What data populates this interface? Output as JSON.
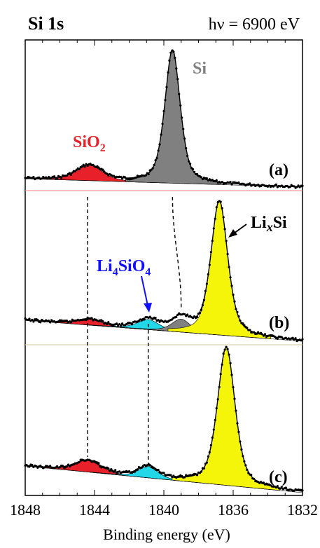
{
  "chart_data": {
    "type": "line",
    "title_left": "Si 1s",
    "title_right": "hν  = 6900 eV",
    "xlabel": "Binding energy (eV)",
    "xlim": [
      1848,
      1832
    ],
    "x_reversed": true,
    "x_ticks": [
      1848,
      1844,
      1840,
      1836,
      1832
    ],
    "grid": false,
    "colors": {
      "SiO2": "#e8202a",
      "Si": "#808080",
      "Li4SiO4": "#22d8e8",
      "LixSi": "#f5f50a",
      "data": "#000000",
      "guide": "#000000",
      "separator_ab": "#f08080",
      "separator_bc": "#c8c8a0"
    },
    "panels": [
      {
        "panel_label": "(a)",
        "components": [
          {
            "name": "SiO2",
            "label": "SiO",
            "label_sub": "2",
            "center": 1844.3,
            "fwhm": 1.8,
            "height": 0.11
          },
          {
            "name": "Si",
            "label": "Si",
            "center": 1839.5,
            "fwhm": 1.05,
            "height": 0.95
          }
        ]
      },
      {
        "panel_label": "(b)",
        "components": [
          {
            "name": "SiO2",
            "center": 1844.3,
            "fwhm": 1.7,
            "height": 0.04
          },
          {
            "name": "Li4SiO4",
            "label": "Li",
            "label_sub": "4",
            "label_tail": "SiO",
            "label_sub2": "4",
            "center": 1840.9,
            "fwhm": 1.5,
            "height": 0.07
          },
          {
            "name": "Si",
            "center": 1839.0,
            "fwhm": 1.3,
            "height": 0.09
          },
          {
            "name": "LixSi",
            "label": "Li",
            "label_italic": "x",
            "label_tail": "Si",
            "center": 1836.8,
            "fwhm": 1.15,
            "height": 0.93
          }
        ]
      },
      {
        "panel_label": "(c)",
        "components": [
          {
            "name": "SiO2",
            "center": 1844.4,
            "fwhm": 1.8,
            "height": 0.08
          },
          {
            "name": "Li4SiO4",
            "center": 1840.9,
            "fwhm": 1.3,
            "height": 0.08
          },
          {
            "name": "LixSi",
            "center": 1836.4,
            "fwhm": 1.2,
            "height": 0.96
          }
        ]
      }
    ],
    "guide_lines": {
      "SiO2": 1844.4,
      "Li4SiO4": 1840.9,
      "Si": [
        1839.5,
        1839.0
      ]
    }
  }
}
